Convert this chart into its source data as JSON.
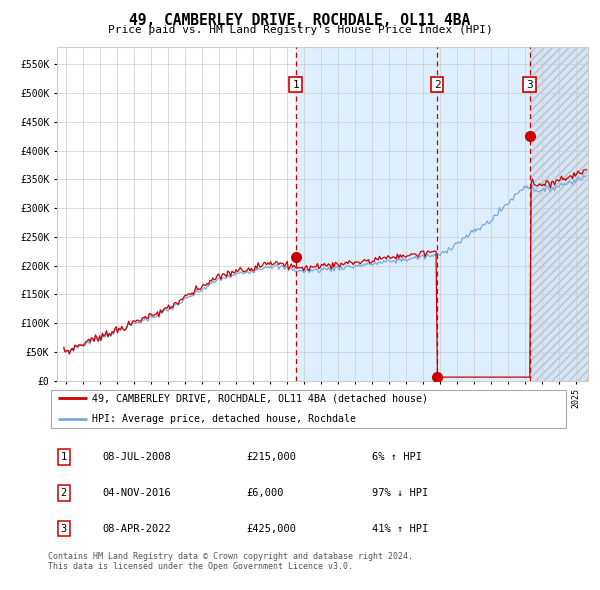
{
  "title": "49, CAMBERLEY DRIVE, ROCHDALE, OL11 4BA",
  "subtitle": "Price paid vs. HM Land Registry's House Price Index (HPI)",
  "legend_property": "49, CAMBERLEY DRIVE, ROCHDALE, OL11 4BA (detached house)",
  "legend_hpi": "HPI: Average price, detached house, Rochdale",
  "footer1": "Contains HM Land Registry data © Crown copyright and database right 2024.",
  "footer2": "This data is licensed under the Open Government Licence v3.0.",
  "transactions": [
    {
      "num": 1,
      "date": "08-JUL-2008",
      "price": "£215,000",
      "hpi_diff": "6% ↑ HPI"
    },
    {
      "num": 2,
      "date": "04-NOV-2016",
      "price": "£6,000",
      "hpi_diff": "97% ↓ HPI"
    },
    {
      "num": 3,
      "date": "08-APR-2022",
      "price": "£425,000",
      "hpi_diff": "41% ↑ HPI"
    }
  ],
  "t1": 2008.52,
  "t2": 2016.84,
  "t3": 2022.27,
  "sale_prices": [
    215000,
    6000,
    425000
  ],
  "hpi_color": "#7aaadd",
  "property_color": "#cc0000",
  "dashed_color": "#cc0000",
  "bg_highlight_color": "#ddeeff",
  "hatch_color": "#ccdcee",
  "grid_color": "#cccccc",
  "ylim": [
    0,
    580000
  ],
  "yticks": [
    0,
    50000,
    100000,
    150000,
    200000,
    250000,
    300000,
    350000,
    400000,
    450000,
    500000,
    550000
  ],
  "xlim_start": 1994.5,
  "xlim_end": 2025.7,
  "xticks": [
    1995,
    1996,
    1997,
    1998,
    1999,
    2000,
    2001,
    2002,
    2003,
    2004,
    2005,
    2006,
    2007,
    2008,
    2009,
    2010,
    2011,
    2012,
    2013,
    2014,
    2015,
    2016,
    2017,
    2018,
    2019,
    2020,
    2021,
    2022,
    2023,
    2024,
    2025
  ]
}
